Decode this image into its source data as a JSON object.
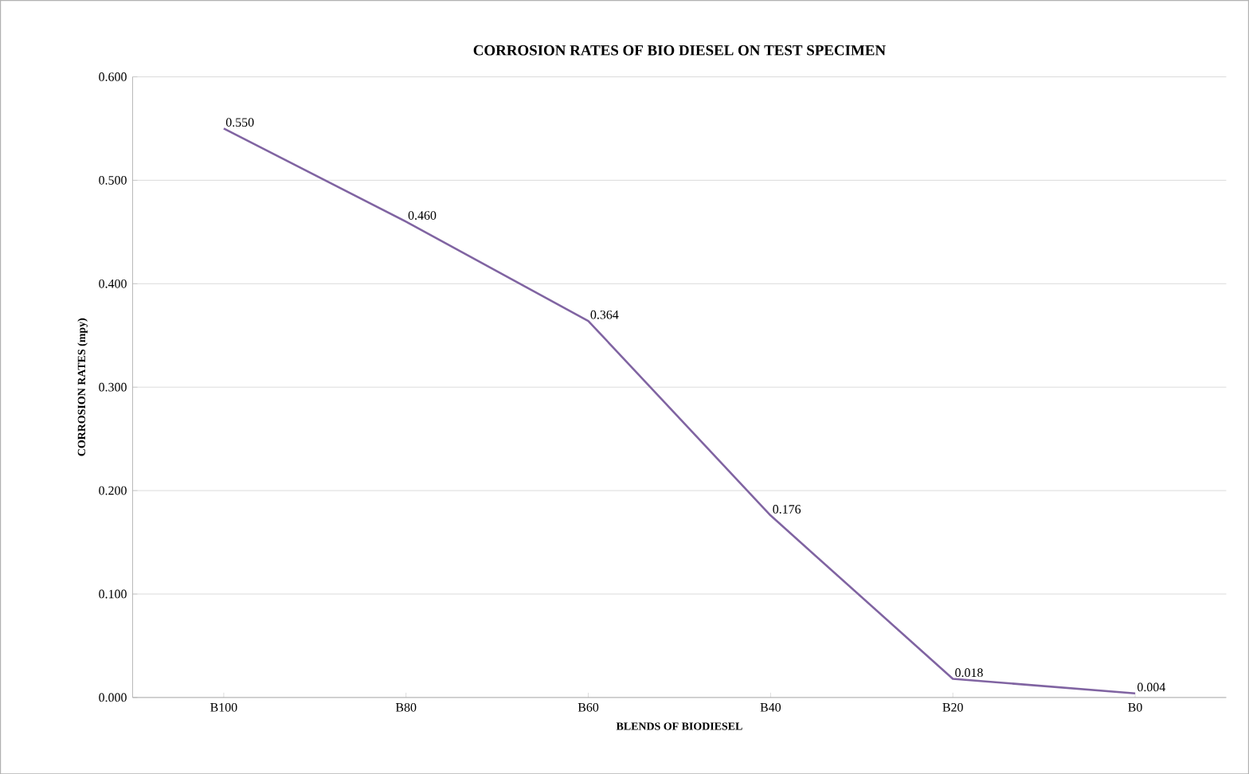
{
  "chart_data": {
    "type": "line",
    "title": "CORROSION RATES OF BIO DIESEL ON TEST SPECIMEN",
    "xlabel": "BLENDS OF BIODIESEL",
    "ylabel": "CORROSION RATES (mpy)",
    "categories": [
      "B100",
      "B80",
      "B60",
      "B40",
      "B20",
      "B0"
    ],
    "series": [
      {
        "color": "#8064a2",
        "values": [
          0.55,
          0.46,
          0.364,
          0.176,
          0.018,
          0.004
        ],
        "value_labels": [
          "0.550",
          "0.460",
          "0.364",
          "0.176",
          "0.018",
          "0.004"
        ]
      }
    ],
    "ylim": [
      0,
      0.6
    ],
    "yticks": [
      {
        "value": 0,
        "label": "0.000"
      },
      {
        "value": 0.1,
        "label": "0.100"
      },
      {
        "value": 0.2,
        "label": "0.200"
      },
      {
        "value": 0.3,
        "label": "0.300"
      },
      {
        "value": 0.4,
        "label": "0.400"
      },
      {
        "value": 0.5,
        "label": "0.500"
      },
      {
        "value": 0.6,
        "label": "0.600"
      }
    ],
    "grid": "y",
    "marker": "none",
    "line_style": "solid"
  }
}
